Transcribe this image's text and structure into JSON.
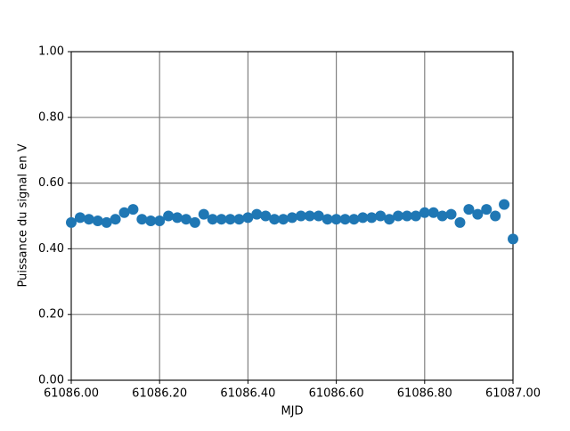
{
  "chart_data": {
    "type": "scatter",
    "xlabel": "MJD",
    "ylabel": "Puissance du signal en V",
    "series": [
      {
        "color": "#1f77b4",
        "x": [
          61086.0,
          61086.02,
          61086.04,
          61086.06,
          61086.08,
          61086.1,
          61086.12,
          61086.14,
          61086.16,
          61086.18,
          61086.2,
          61086.22,
          61086.24,
          61086.26,
          61086.28,
          61086.3,
          61086.32,
          61086.34,
          61086.36,
          61086.38,
          61086.4,
          61086.42,
          61086.44,
          61086.46,
          61086.48,
          61086.5,
          61086.52,
          61086.54,
          61086.56,
          61086.58,
          61086.6,
          61086.62,
          61086.64,
          61086.66,
          61086.68,
          61086.7,
          61086.72,
          61086.74,
          61086.76,
          61086.78,
          61086.8,
          61086.82,
          61086.84,
          61086.86,
          61086.88,
          61086.9,
          61086.92,
          61086.94,
          61086.96,
          61086.98,
          61087.0
        ],
        "values": [
          0.48,
          0.495,
          0.49,
          0.485,
          0.48,
          0.49,
          0.51,
          0.52,
          0.49,
          0.485,
          0.485,
          0.5,
          0.495,
          0.49,
          0.48,
          0.505,
          0.49,
          0.49,
          0.49,
          0.49,
          0.495,
          0.505,
          0.5,
          0.49,
          0.49,
          0.495,
          0.5,
          0.5,
          0.5,
          0.49,
          0.49,
          0.49,
          0.49,
          0.495,
          0.495,
          0.5,
          0.49,
          0.5,
          0.5,
          0.5,
          0.51,
          0.51,
          0.5,
          0.505,
          0.48,
          0.52,
          0.505,
          0.52,
          0.5,
          0.535,
          0.43
        ]
      }
    ],
    "xlim": [
      61086.0,
      61087.0
    ],
    "xticks": [
      {
        "value": 61086.0,
        "label": "61086.00"
      },
      {
        "value": 61086.2,
        "label": "61086.20"
      },
      {
        "value": 61086.4,
        "label": "61086.40"
      },
      {
        "value": 61086.6,
        "label": "61086.60"
      },
      {
        "value": 61086.8,
        "label": "61086.80"
      },
      {
        "value": 61087.0,
        "label": "61087.00"
      }
    ],
    "ylim": [
      0,
      1
    ],
    "yticks": [
      {
        "value": 0,
        "label": "0.00"
      },
      {
        "value": 0.2,
        "label": "0.20"
      },
      {
        "value": 0.4,
        "label": "0.40"
      },
      {
        "value": 0.6,
        "label": "0.60"
      },
      {
        "value": 0.8,
        "label": "0.80"
      },
      {
        "value": 1,
        "label": "1.00"
      }
    ],
    "grid": true
  }
}
